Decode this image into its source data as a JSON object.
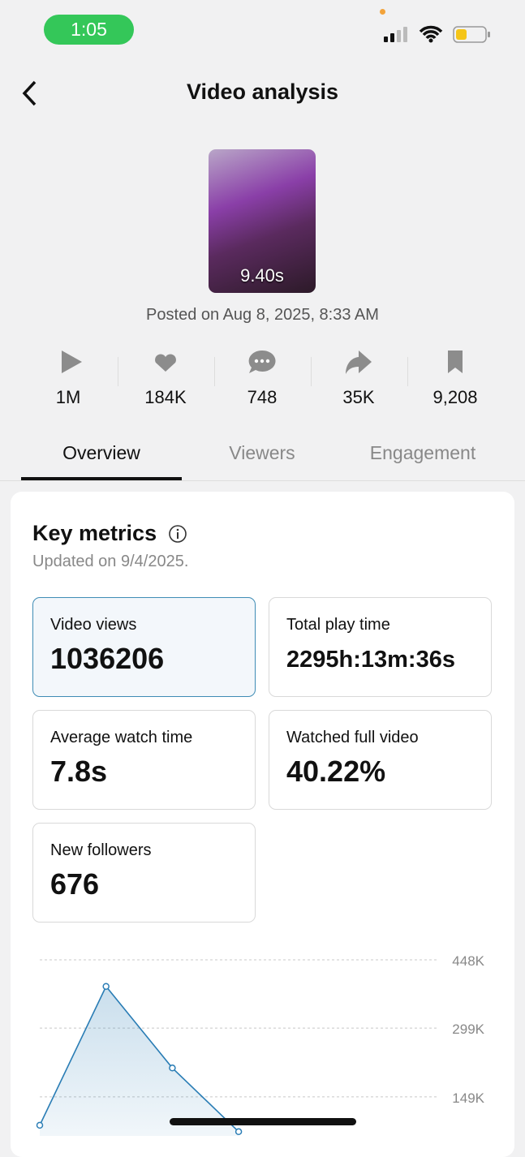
{
  "status_bar": {
    "time": "1:05"
  },
  "header": {
    "title": "Video analysis"
  },
  "video": {
    "duration": "9.40s",
    "posted": "Posted on Aug 8, 2025, 8:33 AM"
  },
  "stats": [
    "1M",
    "184K",
    "748",
    "35K",
    "9,208"
  ],
  "tabs": {
    "items": [
      "Overview",
      "Viewers",
      "Engagement"
    ],
    "active": 0
  },
  "key_metrics": {
    "title": "Key metrics",
    "updated": "Updated on 9/4/2025.",
    "selected": 0,
    "metrics": [
      {
        "label": "Video views",
        "value": "1036206"
      },
      {
        "label": "Total play time",
        "value": "2295h:13m:36s"
      },
      {
        "label": "Average watch time",
        "value": "7.8s"
      },
      {
        "label": "Watched full video",
        "value": "40.22%"
      },
      {
        "label": "New followers",
        "value": "676"
      }
    ]
  },
  "chart": {
    "type": "line",
    "values": [
      87000,
      390000,
      212000,
      73000
    ],
    "color": "#2a7db5",
    "ylim": [
      0,
      448000
    ],
    "yticks": [
      {
        "value": 149000,
        "label": "149K"
      },
      {
        "value": 299000,
        "label": "299K"
      },
      {
        "value": 448000,
        "label": "448K"
      }
    ],
    "grid": true
  }
}
